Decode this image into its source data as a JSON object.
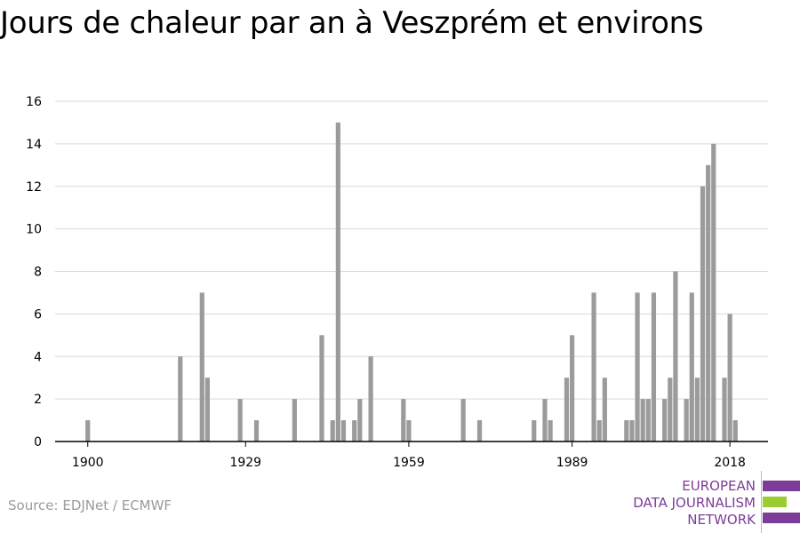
{
  "title": "Jours de chaleur par an à Veszprém et environs",
  "source": "Source: EDJNet / ECMWF",
  "logo": {
    "lines": [
      "EUROPEAN",
      "DATA JOURNALISM",
      "NETWORK"
    ],
    "colors": {
      "text": "#7d3c98",
      "purple": "#7d3c98",
      "green": "#9acd32"
    }
  },
  "colors": {
    "bar": "#9b9b9b",
    "grid": "#d9d9d9",
    "axis": "#000000"
  },
  "chart_data": {
    "type": "bar",
    "title": "Jours de chaleur par an à Veszprém et environs",
    "xlabel": "",
    "ylabel": "",
    "xlim": [
      1894,
      2025
    ],
    "ylim": [
      0,
      16
    ],
    "yticks": [
      0,
      2,
      4,
      6,
      8,
      10,
      12,
      14,
      16
    ],
    "xticks": [
      1900,
      1929,
      1959,
      1989,
      2018
    ],
    "grid": true,
    "x": [
      1900,
      1917,
      1921,
      1922,
      1928,
      1931,
      1938,
      1943,
      1945,
      1946,
      1947,
      1949,
      1950,
      1952,
      1958,
      1959,
      1969,
      1972,
      1982,
      1984,
      1985,
      1988,
      1989,
      1993,
      1994,
      1995,
      1999,
      2000,
      2001,
      2002,
      2003,
      2004,
      2006,
      2007,
      2008,
      2010,
      2011,
      2012,
      2013,
      2014,
      2015,
      2017,
      2018,
      2019,
      2020
    ],
    "values": [
      1,
      4,
      7,
      3,
      2,
      1,
      2,
      5,
      1,
      15,
      1,
      1,
      2,
      4,
      2,
      1,
      2,
      1,
      1,
      2,
      1,
      3,
      5,
      7,
      1,
      3,
      1,
      1,
      7,
      2,
      2,
      7,
      2,
      3,
      8,
      2,
      7,
      3,
      12,
      13,
      14,
      3,
      6,
      1,
      0
    ]
  }
}
